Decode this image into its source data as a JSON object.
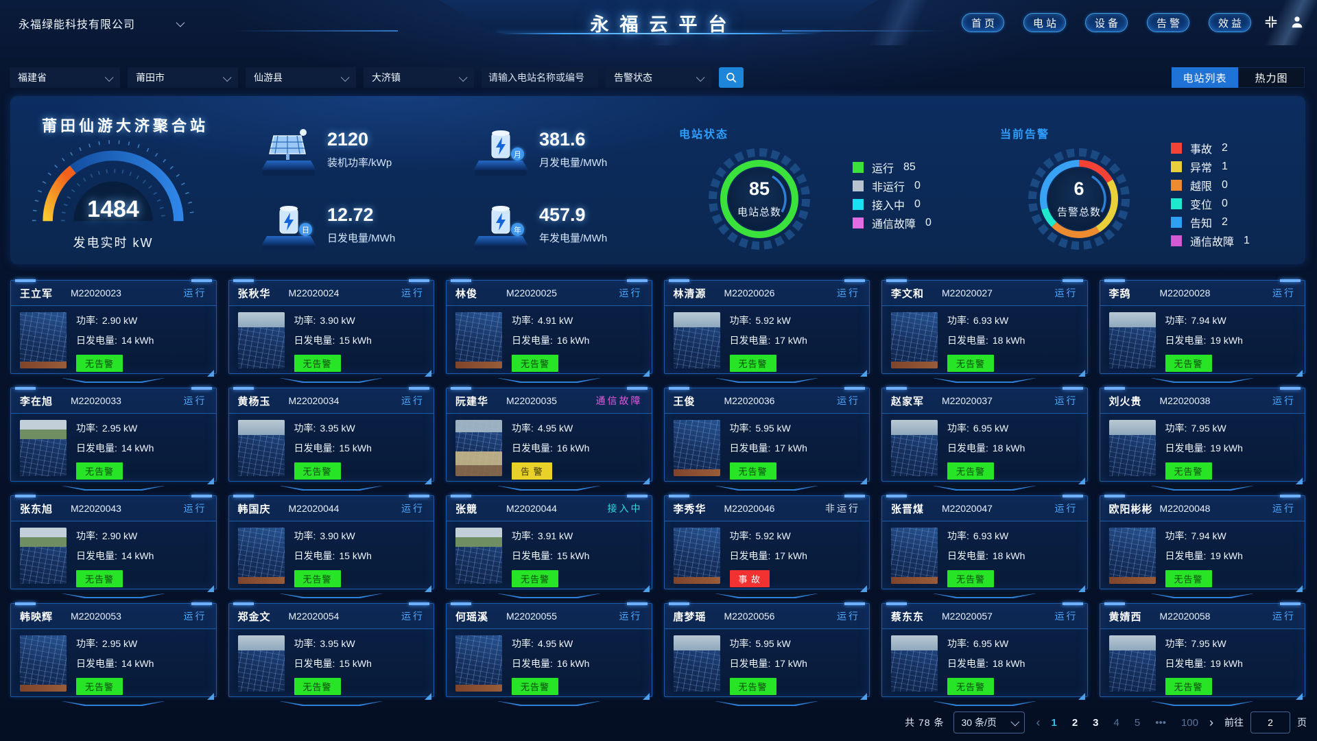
{
  "header": {
    "company": "永福绿能科技有限公司",
    "title": "永福云平台",
    "nav": [
      {
        "label": "首页"
      },
      {
        "label": "电站"
      },
      {
        "label": "设备"
      },
      {
        "label": "告警"
      },
      {
        "label": "效益"
      }
    ]
  },
  "filters": {
    "province": "福建省",
    "city": "莆田市",
    "county": "仙游县",
    "town": "大济镇",
    "search_placeholder": "请输入电站名称或编号",
    "alarm_status": "告警状态",
    "view_list": "电站列表",
    "view_heatmap": "热力图",
    "active_view": "list"
  },
  "overview": {
    "station_name": "莆田仙游大济聚合站",
    "gauge": {
      "value": "1484",
      "label": "发电实时 kW"
    },
    "stats": [
      {
        "value": "2120",
        "label": "装机功率/kWp",
        "icon": "solar-panel-icon",
        "badge": ""
      },
      {
        "value": "381.6",
        "label": "月发电量/MWh",
        "icon": "battery-month-icon",
        "badge": "月"
      },
      {
        "value": "12.72",
        "label": "日发电量/MWh",
        "icon": "battery-day-icon",
        "badge": "日"
      },
      {
        "value": "457.9",
        "label": "年发电量/MWh",
        "icon": "battery-year-icon",
        "badge": "年"
      }
    ],
    "station_status": {
      "title": "电站状态",
      "total": "85",
      "total_label": "电站总数",
      "ring_color": "#3be23b",
      "legend": [
        {
          "label": "运行",
          "value": "85",
          "color": "#3be23b"
        },
        {
          "label": "非运行",
          "value": "0",
          "color": "#b9c2cf"
        },
        {
          "label": "接入中",
          "value": "0",
          "color": "#19e0f2"
        },
        {
          "label": "通信故障",
          "value": "0",
          "color": "#e26ce2"
        }
      ]
    },
    "alarms": {
      "title": "当前告警",
      "total": "6",
      "total_label": "告警总数",
      "legend": [
        {
          "label": "事故",
          "value": "2",
          "color": "#f44236"
        },
        {
          "label": "异常",
          "value": "1",
          "color": "#e9cf3a"
        },
        {
          "label": "越限",
          "value": "0",
          "color": "#ec8b2f"
        },
        {
          "label": "变位",
          "value": "0",
          "color": "#1fe9cd"
        },
        {
          "label": "告知",
          "value": "2",
          "color": "#2e9ff2"
        },
        {
          "label": "通信故障",
          "value": "1",
          "color": "#d45ad4"
        }
      ],
      "ring": [
        {
          "color": "#f44236",
          "deg": 60
        },
        {
          "color": "#e9cf3a",
          "deg": 88
        },
        {
          "color": "#ec8b2f",
          "deg": 76
        },
        {
          "color": "#1fe9cd",
          "deg": 30
        },
        {
          "color": "#3aa2f5",
          "deg": 106
        }
      ]
    }
  },
  "card_labels": {
    "power": "功率:",
    "energy": "日发电量:"
  },
  "cards": [
    {
      "name": "王立军",
      "id": "M22020023",
      "status": "运行",
      "status_type": "run",
      "power": "2.90 kW",
      "energy": "14 kWh",
      "tag": "无告警",
      "tag_type": "ok",
      "photo": "a"
    },
    {
      "name": "张秋华",
      "id": "M22020024",
      "status": "运行",
      "status_type": "run",
      "power": "3.90 kW",
      "energy": "15 kWh",
      "tag": "无告警",
      "tag_type": "ok",
      "photo": "b"
    },
    {
      "name": "林俊",
      "id": "M22020025",
      "status": "运行",
      "status_type": "run",
      "power": "4.91 kW",
      "energy": "16 kWh",
      "tag": "无告警",
      "tag_type": "ok",
      "photo": "a"
    },
    {
      "name": "林清源",
      "id": "M22020026",
      "status": "运行",
      "status_type": "run",
      "power": "5.92 kW",
      "energy": "17 kWh",
      "tag": "无告警",
      "tag_type": "ok",
      "photo": "b"
    },
    {
      "name": "李文和",
      "id": "M22020027",
      "status": "运行",
      "status_type": "run",
      "power": "6.93 kW",
      "energy": "18 kWh",
      "tag": "无告警",
      "tag_type": "ok",
      "photo": "a"
    },
    {
      "name": "李鸹",
      "id": "M22020028",
      "status": "运行",
      "status_type": "run",
      "power": "7.94 kW",
      "energy": "19 kWh",
      "tag": "无告警",
      "tag_type": "ok",
      "photo": "b"
    },
    {
      "name": "李在旭",
      "id": "M22020033",
      "status": "运行",
      "status_type": "run",
      "power": "2.95 kW",
      "energy": "14 kWh",
      "tag": "无告警",
      "tag_type": "ok",
      "photo": "c"
    },
    {
      "name": "黄杨玉",
      "id": "M22020034",
      "status": "运行",
      "status_type": "run",
      "power": "3.95 kW",
      "energy": "15 kWh",
      "tag": "无告警",
      "tag_type": "ok",
      "photo": "b"
    },
    {
      "name": "阮建华",
      "id": "M22020035",
      "status": "通信故障",
      "status_type": "comm",
      "power": "4.95 kW",
      "energy": "16 kWh",
      "tag": "告 警",
      "tag_type": "warn",
      "photo": "h"
    },
    {
      "name": "王俊",
      "id": "M22020036",
      "status": "运行",
      "status_type": "run",
      "power": "5.95 kW",
      "energy": "17 kWh",
      "tag": "无告警",
      "tag_type": "ok",
      "photo": "a"
    },
    {
      "name": "赵家军",
      "id": "M22020037",
      "status": "运行",
      "status_type": "run",
      "power": "6.95 kW",
      "energy": "18 kWh",
      "tag": "无告警",
      "tag_type": "ok",
      "photo": "b"
    },
    {
      "name": "刘火贵",
      "id": "M22020038",
      "status": "运行",
      "status_type": "run",
      "power": "7.95 kW",
      "energy": "19 kWh",
      "tag": "无告警",
      "tag_type": "ok",
      "photo": "b"
    },
    {
      "name": "张东旭",
      "id": "M22020043",
      "status": "运行",
      "status_type": "run",
      "power": "2.90 kW",
      "energy": "14 kWh",
      "tag": "无告警",
      "tag_type": "ok",
      "photo": "c"
    },
    {
      "name": "韩国庆",
      "id": "M22020044",
      "status": "运行",
      "status_type": "run",
      "power": "3.90 kW",
      "energy": "15 kWh",
      "tag": "无告警",
      "tag_type": "ok",
      "photo": "a"
    },
    {
      "name": "张競",
      "id": "M22020044",
      "status": "接入中",
      "status_type": "conn",
      "power": "3.91 kW",
      "energy": "15 kWh",
      "tag": "无告警",
      "tag_type": "ok",
      "photo": "c"
    },
    {
      "name": "李秀华",
      "id": "M22020046",
      "status": "非运行",
      "status_type": "off",
      "power": "5.92 kW",
      "energy": "17 kWh",
      "tag": "事 故",
      "tag_type": "acc",
      "photo": "a"
    },
    {
      "name": "张晋煤",
      "id": "M22020047",
      "status": "运行",
      "status_type": "run",
      "power": "6.93 kW",
      "energy": "18 kWh",
      "tag": "无告警",
      "tag_type": "ok",
      "photo": "a"
    },
    {
      "name": "欧阳彬彬",
      "id": "M22020048",
      "status": "运行",
      "status_type": "run",
      "power": "7.94 kW",
      "energy": "19 kWh",
      "tag": "无告警",
      "tag_type": "ok",
      "photo": "a"
    },
    {
      "name": "韩映辉",
      "id": "M22020053",
      "status": "运行",
      "status_type": "run",
      "power": "2.95 kW",
      "energy": "14 kWh",
      "tag": "无告警",
      "tag_type": "ok",
      "photo": "a"
    },
    {
      "name": "郑金文",
      "id": "M22020054",
      "status": "运行",
      "status_type": "run",
      "power": "3.95 kW",
      "energy": "15 kWh",
      "tag": "无告警",
      "tag_type": "ok",
      "photo": "b"
    },
    {
      "name": "何瑶溪",
      "id": "M22020055",
      "status": "运行",
      "status_type": "run",
      "power": "4.95 kW",
      "energy": "16 kWh",
      "tag": "无告警",
      "tag_type": "ok",
      "photo": "a"
    },
    {
      "name": "唐梦瑶",
      "id": "M22020056",
      "status": "运行",
      "status_type": "run",
      "power": "5.95 kW",
      "energy": "17 kWh",
      "tag": "无告警",
      "tag_type": "ok",
      "photo": "b"
    },
    {
      "name": "蔡东东",
      "id": "M22020057",
      "status": "运行",
      "status_type": "run",
      "power": "6.95 kW",
      "energy": "18 kWh",
      "tag": "无告警",
      "tag_type": "ok",
      "photo": "b"
    },
    {
      "name": "黄婧西",
      "id": "M22020058",
      "status": "运行",
      "status_type": "run",
      "power": "7.95 kW",
      "energy": "19 kWh",
      "tag": "无告警",
      "tag_type": "ok",
      "photo": "b"
    }
  ],
  "pagination": {
    "total": "共 78 条",
    "page_size": "30 条/页",
    "prev": "‹",
    "next": "›",
    "pages": [
      {
        "label": "1",
        "state": "active"
      },
      {
        "label": "2",
        "state": "normal"
      },
      {
        "label": "3",
        "state": "normal"
      },
      {
        "label": "4",
        "state": "dim"
      },
      {
        "label": "5",
        "state": "dim"
      },
      {
        "label": "•••",
        "state": "dim"
      },
      {
        "label": "100",
        "state": "dim"
      }
    ],
    "jump_label": "前往",
    "jump_value": "2",
    "jump_suffix": "页"
  }
}
